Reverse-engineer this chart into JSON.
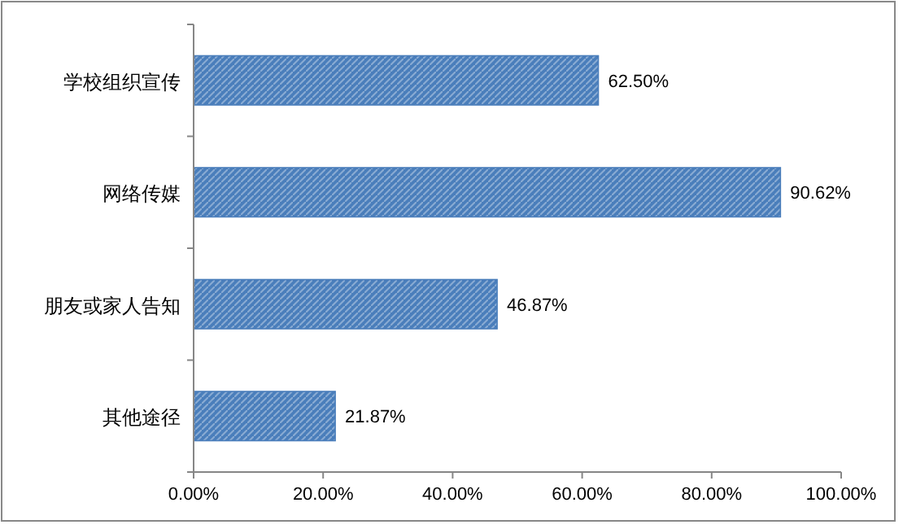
{
  "chart_data": {
    "type": "bar",
    "orientation": "horizontal",
    "categories": [
      "学校组织宣传",
      "网络传媒",
      "朋友或家人告知",
      "其他途径"
    ],
    "values": [
      62.5,
      90.62,
      46.87,
      21.87
    ],
    "value_labels": [
      "62.50%",
      "90.62%",
      "46.87%",
      "21.87%"
    ],
    "color": "#4a7ebb",
    "xlim": [
      0,
      100
    ],
    "xticks": [
      {
        "value": 0,
        "label": "0.00%"
      },
      {
        "value": 20,
        "label": "20.00%"
      },
      {
        "value": 40,
        "label": "40.00%"
      },
      {
        "value": 60,
        "label": "60.00%"
      },
      {
        "value": 80,
        "label": "80.00%"
      },
      {
        "value": 100,
        "label": "100.00%"
      }
    ]
  }
}
